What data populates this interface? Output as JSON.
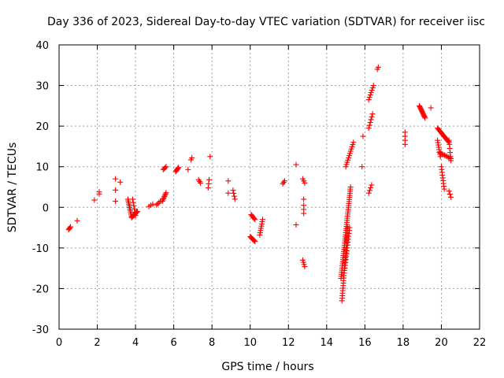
{
  "chart_data": {
    "type": "scatter",
    "title": "Day 336 of 2023, Sidereal Day-to-day VTEC variation (SDTVAR) for receiver iisc",
    "xlabel": "GPS time / hours",
    "ylabel": "SDTVAR / TECUs",
    "xlim": [
      0,
      22
    ],
    "ylim": [
      -30,
      40
    ],
    "xticks": [
      "0",
      "2",
      "4",
      "6",
      "8",
      "10",
      "12",
      "14",
      "16",
      "18",
      "20",
      "22"
    ],
    "yticks": [
      "-30",
      "-20",
      "-10",
      "0",
      "10",
      "20",
      "30",
      "40"
    ],
    "grid": true,
    "marker": "+",
    "color": "#ff0000",
    "segments": [
      {
        "x0": 0.5,
        "x1": 0.6,
        "y0": -5.5,
        "y1": -4.8,
        "n": 4
      },
      {
        "x0": 0.95,
        "x1": 0.95,
        "y0": -3.3,
        "y1": -3.3,
        "n": 1
      },
      {
        "x0": 1.85,
        "x1": 1.85,
        "y0": 1.8,
        "y1": 1.8,
        "n": 1
      },
      {
        "x0": 2.1,
        "x1": 2.1,
        "y0": 3.3,
        "y1": 3.8,
        "n": 2
      },
      {
        "x0": 2.95,
        "x1": 2.95,
        "y0": 1.5,
        "y1": 7.0,
        "n": 3
      },
      {
        "x0": 3.2,
        "x1": 3.2,
        "y0": 6.2,
        "y1": 6.2,
        "n": 1
      },
      {
        "x0": 3.6,
        "x1": 3.8,
        "y0": 2.0,
        "y1": -2.5,
        "n": 12
      },
      {
        "x0": 3.8,
        "x1": 4.1,
        "y0": -2.5,
        "y1": -1.0,
        "n": 10
      },
      {
        "x0": 3.85,
        "x1": 4.0,
        "y0": 2.0,
        "y1": -2.0,
        "n": 6
      },
      {
        "x0": 4.7,
        "x1": 4.9,
        "y0": 0.2,
        "y1": 0.8,
        "n": 3
      },
      {
        "x0": 5.1,
        "x1": 5.3,
        "y0": 0.6,
        "y1": 1.5,
        "n": 4
      },
      {
        "x0": 5.4,
        "x1": 5.6,
        "y0": 1.5,
        "y1": 3.6,
        "n": 8
      },
      {
        "x0": 5.45,
        "x1": 5.6,
        "y0": 9.3,
        "y1": 10.0,
        "n": 4
      },
      {
        "x0": 6.1,
        "x1": 6.25,
        "y0": 8.8,
        "y1": 9.8,
        "n": 6
      },
      {
        "x0": 6.75,
        "x1": 6.75,
        "y0": 9.3,
        "y1": 9.3,
        "n": 1
      },
      {
        "x0": 6.9,
        "x1": 6.95,
        "y0": 11.7,
        "y1": 12.2,
        "n": 2
      },
      {
        "x0": 7.3,
        "x1": 7.4,
        "y0": 6.8,
        "y1": 6.0,
        "n": 3
      },
      {
        "x0": 7.8,
        "x1": 7.85,
        "y0": 4.8,
        "y1": 6.8,
        "n": 3
      },
      {
        "x0": 7.9,
        "x1": 7.9,
        "y0": 12.5,
        "y1": 12.5,
        "n": 1
      },
      {
        "x0": 8.85,
        "x1": 8.85,
        "y0": 3.5,
        "y1": 6.5,
        "n": 2
      },
      {
        "x0": 9.1,
        "x1": 9.2,
        "y0": 4.2,
        "y1": 2.0,
        "n": 4
      },
      {
        "x0": 10.05,
        "x1": 10.25,
        "y0": -1.8,
        "y1": -3.0,
        "n": 6
      },
      {
        "x0": 10.0,
        "x1": 10.25,
        "y0": -7.2,
        "y1": -8.4,
        "n": 8
      },
      {
        "x0": 10.5,
        "x1": 10.65,
        "y0": -6.8,
        "y1": -3.0,
        "n": 8
      },
      {
        "x0": 11.7,
        "x1": 11.8,
        "y0": 5.8,
        "y1": 6.5,
        "n": 3
      },
      {
        "x0": 12.4,
        "x1": 12.4,
        "y0": 10.5,
        "y1": 10.5,
        "n": 1
      },
      {
        "x0": 12.4,
        "x1": 12.4,
        "y0": -4.3,
        "y1": -4.3,
        "n": 1
      },
      {
        "x0": 12.75,
        "x1": 12.85,
        "y0": 7.0,
        "y1": 6.0,
        "n": 3
      },
      {
        "x0": 12.8,
        "x1": 12.8,
        "y0": 2.0,
        "y1": 0.5,
        "n": 2
      },
      {
        "x0": 12.8,
        "x1": 12.8,
        "y0": -0.5,
        "y1": -1.5,
        "n": 2
      },
      {
        "x0": 12.75,
        "x1": 12.85,
        "y0": -13.0,
        "y1": -14.6,
        "n": 4
      },
      {
        "x0": 14.75,
        "x1": 15.25,
        "y0": -17.5,
        "y1": 5.0,
        "n": 45
      },
      {
        "x0": 14.8,
        "x1": 15.1,
        "y0": -23.0,
        "y1": -5.0,
        "n": 30
      },
      {
        "x0": 14.95,
        "x1": 15.2,
        "y0": -15.0,
        "y1": -5.0,
        "n": 15
      },
      {
        "x0": 15.0,
        "x1": 15.4,
        "y0": 10.0,
        "y1": 16.0,
        "n": 12
      },
      {
        "x0": 15.85,
        "x1": 15.9,
        "y0": 10.0,
        "y1": 17.5,
        "n": 2
      },
      {
        "x0": 16.2,
        "x1": 16.35,
        "y0": 3.5,
        "y1": 5.5,
        "n": 4
      },
      {
        "x0": 16.2,
        "x1": 16.4,
        "y0": 19.5,
        "y1": 23.0,
        "n": 6
      },
      {
        "x0": 16.2,
        "x1": 16.45,
        "y0": 26.5,
        "y1": 30.0,
        "n": 7
      },
      {
        "x0": 16.65,
        "x1": 16.7,
        "y0": 34.0,
        "y1": 34.5,
        "n": 2
      },
      {
        "x0": 18.1,
        "x1": 18.1,
        "y0": 15.5,
        "y1": 18.5,
        "n": 4
      },
      {
        "x0": 18.85,
        "x1": 19.15,
        "y0": 25.0,
        "y1": 22.0,
        "n": 14
      },
      {
        "x0": 19.45,
        "x1": 19.45,
        "y0": 24.5,
        "y1": 24.5,
        "n": 1
      },
      {
        "x0": 19.8,
        "x1": 20.4,
        "y0": 19.5,
        "y1": 16.0,
        "n": 16
      },
      {
        "x0": 19.8,
        "x1": 19.95,
        "y0": 16.5,
        "y1": 12.5,
        "n": 8
      },
      {
        "x0": 19.9,
        "x1": 20.5,
        "y0": 13.5,
        "y1": 12.0,
        "n": 10
      },
      {
        "x0": 20.0,
        "x1": 20.15,
        "y0": 10.0,
        "y1": 4.5,
        "n": 9
      },
      {
        "x0": 20.4,
        "x1": 20.5,
        "y0": 16.5,
        "y1": 11.5,
        "n": 6
      },
      {
        "x0": 20.4,
        "x1": 20.5,
        "y0": 4.0,
        "y1": 2.5,
        "n": 3
      }
    ]
  }
}
